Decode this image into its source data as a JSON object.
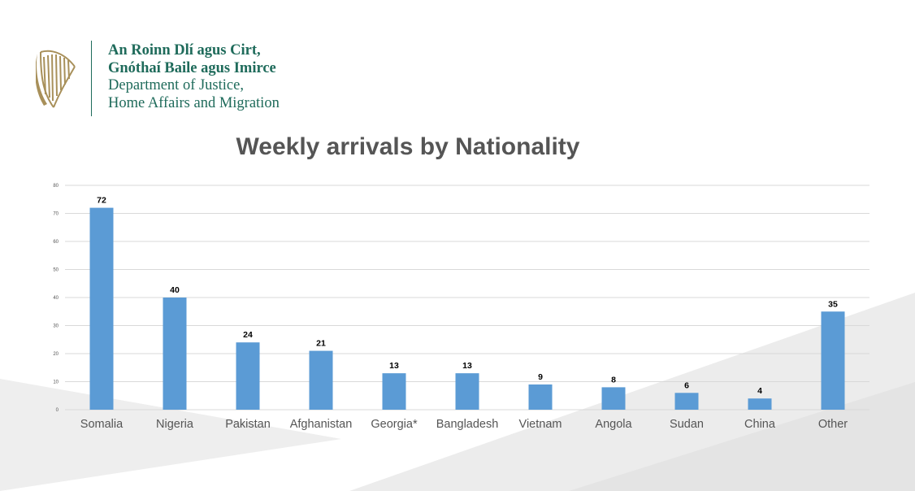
{
  "header": {
    "line1": "An Roinn Dlí agus Cirt,",
    "line2": "Gnóthaí Baile agus Imirce",
    "line3": "Department of Justice,",
    "line4": "Home Affairs and Migration",
    "logo_icon": "harp-icon"
  },
  "colors": {
    "brand": "#1f6b5b",
    "bar": "#5b9bd5",
    "title": "#555555",
    "grid": "#d9d9d9"
  },
  "chart_data": {
    "type": "bar",
    "title": "Weekly arrivals by Nationality",
    "categories": [
      "Somalia",
      "Nigeria",
      "Pakistan",
      "Afghanistan",
      "Georgia*",
      "Bangladesh",
      "Vietnam",
      "Angola",
      "Sudan",
      "China",
      "Other"
    ],
    "values": [
      72,
      40,
      24,
      21,
      13,
      13,
      9,
      8,
      6,
      4,
      35
    ],
    "ylim": [
      0,
      80
    ],
    "yticks": [
      0,
      10,
      20,
      30,
      40,
      50,
      60,
      70,
      80
    ],
    "grid": true,
    "xlabel": "",
    "ylabel": ""
  }
}
